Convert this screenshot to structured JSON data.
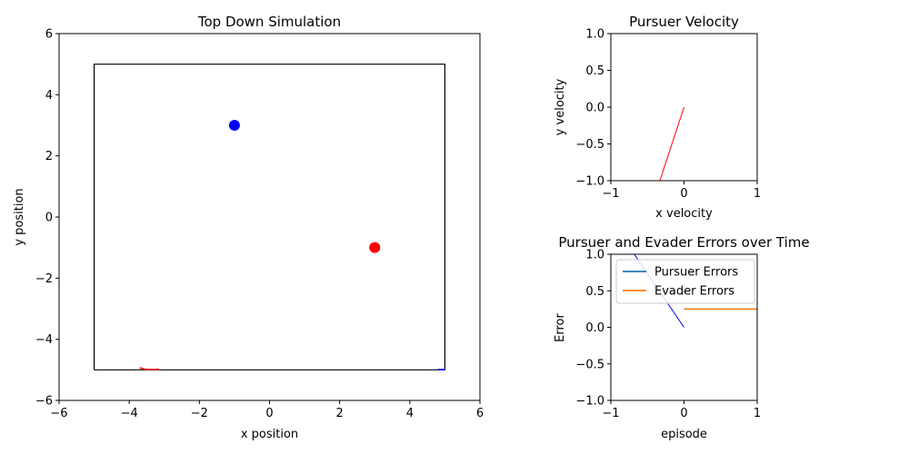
{
  "chart_data": [
    {
      "type": "scatter",
      "title": "Top Down Simulation",
      "xlabel": "x position",
      "ylabel": "y position",
      "xlim": [
        -6,
        6
      ],
      "ylim": [
        -6,
        6
      ],
      "xticks": [
        -6,
        -4,
        -2,
        0,
        2,
        4,
        6
      ],
      "yticks": [
        -6,
        -4,
        -2,
        0,
        2,
        4,
        6
      ],
      "tick_labels_x": [
        "−6",
        "−4",
        "−2",
        "0",
        "2",
        "4",
        "6"
      ],
      "tick_labels_y": [
        "−6",
        "−4",
        "−2",
        "0",
        "2",
        "4",
        "6"
      ],
      "grid": false,
      "boundary": [
        [
          -5,
          -5
        ],
        [
          5,
          -5
        ],
        [
          5,
          5
        ],
        [
          -5,
          5
        ],
        [
          -5,
          -5
        ]
      ],
      "points": [
        {
          "x": -1,
          "y": 3,
          "color": "#0000ff"
        },
        {
          "x": 3,
          "y": -1,
          "color": "#ff0000"
        }
      ],
      "traces": [
        {
          "color": "#ff0000",
          "points": [
            [
              -3.7,
              -4.93
            ],
            [
              -3.55,
              -4.98
            ],
            [
              -3.35,
              -4.99
            ],
            [
              -3.15,
              -4.98
            ]
          ]
        },
        {
          "color": "#0000ff",
          "points": [
            [
              4.8,
              -4.99
            ],
            [
              5.0,
              -4.99
            ]
          ]
        }
      ]
    },
    {
      "type": "line",
      "title": "Pursuer Velocity",
      "xlabel": "x velocity",
      "ylabel": "y velocity",
      "xlim": [
        -1,
        1
      ],
      "ylim": [
        -1,
        1
      ],
      "xticks": [
        -1,
        0,
        1
      ],
      "yticks": [
        -1.0,
        -0.5,
        0.0,
        0.5,
        1.0
      ],
      "tick_labels_x": [
        "−1",
        "0",
        "1"
      ],
      "tick_labels_y": [
        "−1.0",
        "−0.5",
        "0.0",
        "0.5",
        "1.0"
      ],
      "grid": false,
      "series": [
        {
          "color": "#ff0000",
          "x": [
            0,
            -0.33
          ],
          "y": [
            0,
            -1.0
          ]
        }
      ]
    },
    {
      "type": "line",
      "title": "Pursuer and Evader Errors over Time",
      "xlabel": "episode",
      "ylabel": "Error",
      "xlim": [
        -1,
        1
      ],
      "ylim": [
        -1,
        1
      ],
      "xticks": [
        -1,
        0,
        1
      ],
      "yticks": [
        -1.0,
        -0.5,
        0.0,
        0.5,
        1.0
      ],
      "tick_labels_x": [
        "−1",
        "0",
        "1"
      ],
      "tick_labels_y": [
        "−1.0",
        "−0.5",
        "0.0",
        "0.5",
        "1.0"
      ],
      "grid": false,
      "legend": "top-left",
      "series": [
        {
          "name": "Pursuer Errors",
          "color": "#1f77b4",
          "x": [
            0,
            1
          ],
          "y": [
            0.25,
            0.25
          ]
        },
        {
          "name": "Evader Errors",
          "color": "#ff7f0e",
          "x": [
            0,
            1
          ],
          "y": [
            0.25,
            0.25
          ]
        }
      ],
      "extra_lines": [
        {
          "color": "#0000ff",
          "x": [
            0,
            -0.68
          ],
          "y": [
            0,
            1.0
          ]
        }
      ]
    }
  ]
}
